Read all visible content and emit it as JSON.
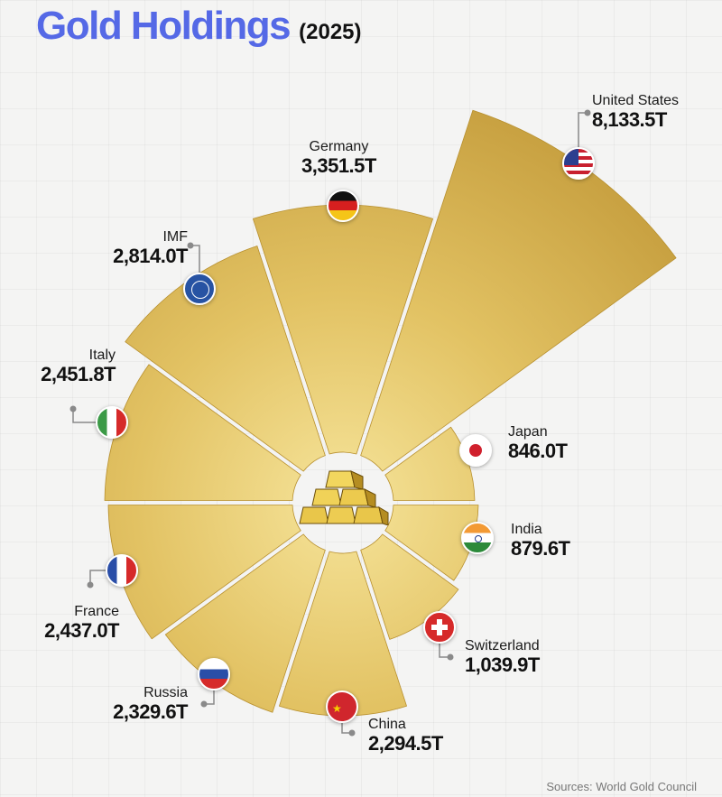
{
  "header": {
    "title": "Gold Holdings",
    "year": "(2025)"
  },
  "footer": {
    "source": "Sources: World Gold Council"
  },
  "colors": {
    "title": "#5569e6",
    "gold_light": "#f3dc8a",
    "gold_dark": "#c9a443"
  },
  "chart_data": {
    "type": "radial-bar",
    "title": "Gold Holdings (2025)",
    "unit": "tonnes (T)",
    "categories": [
      "United States",
      "Germany",
      "IMF",
      "Italy",
      "France",
      "Russia",
      "China",
      "Switzerland",
      "India",
      "Japan"
    ],
    "values": [
      8133.5,
      3351.5,
      2814.0,
      2451.8,
      2437.0,
      2329.6,
      2294.5,
      1039.9,
      879.6,
      846.0
    ],
    "labels": [
      "8,133.5T",
      "3,351.5T",
      "2,814.0T",
      "2,451.8T",
      "2,437.0T",
      "2,329.6T",
      "2,294.5T",
      "1,039.9T",
      "879.6T",
      "846.0T"
    ],
    "source": "Sources: World Gold Council"
  },
  "items": [
    {
      "name": "United States",
      "value": "8,133.5T",
      "start": 288,
      "end": 324,
      "r": 458,
      "icon": "us-flag"
    },
    {
      "name": "Germany",
      "value": "3,351.5T",
      "start": 252,
      "end": 288,
      "r": 330,
      "icon": "germany-flag"
    },
    {
      "name": "IMF",
      "value": "2,814.0T",
      "start": 216,
      "end": 252,
      "r": 300,
      "icon": "imf-seal"
    },
    {
      "name": "Italy",
      "value": "2,451.8T",
      "start": 180,
      "end": 216,
      "r": 264,
      "icon": "italy-flag"
    },
    {
      "name": "France",
      "value": "2,437.0T",
      "start": 144,
      "end": 180,
      "r": 260,
      "icon": "france-flag"
    },
    {
      "name": "Russia",
      "value": "2,329.6T",
      "start": 108,
      "end": 144,
      "r": 245,
      "icon": "russia-flag"
    },
    {
      "name": "China",
      "value": "2,294.5T",
      "start": 72,
      "end": 108,
      "r": 236,
      "icon": "china-flag"
    },
    {
      "name": "Switzerland",
      "value": "1,039.9T",
      "start": 36,
      "end": 72,
      "r": 160,
      "icon": "switzerland-flag"
    },
    {
      "name": "India",
      "value": "879.6T",
      "start": 0,
      "end": 36,
      "r": 150,
      "icon": "india-flag"
    },
    {
      "name": "Japan",
      "value": "846.0T",
      "start": 324,
      "end": 360,
      "r": 146,
      "icon": "japan-flag"
    }
  ]
}
